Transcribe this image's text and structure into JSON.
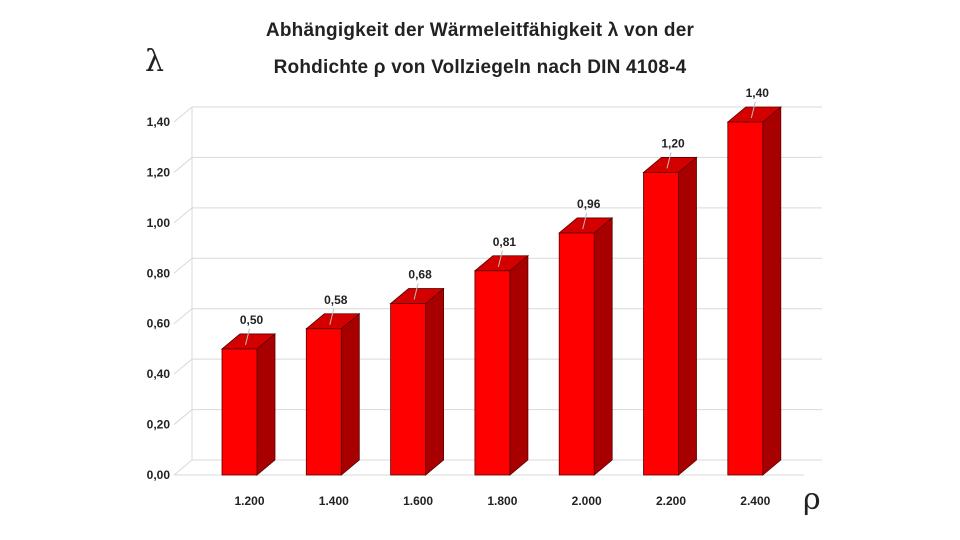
{
  "chart_data": {
    "type": "bar",
    "title_lines": [
      "Abhängigkeit der Wärmeleitfähigkeit λ von der",
      "Rohdichte ρ von Vollziegeln nach DIN 4108-4"
    ],
    "xlabel": "ρ",
    "ylabel": "λ",
    "categories": [
      "1.200",
      "1.400",
      "1.600",
      "1.800",
      "2.000",
      "2.200",
      "2.400"
    ],
    "values": [
      0.5,
      0.58,
      0.68,
      0.81,
      0.96,
      1.2,
      1.4
    ],
    "data_labels": [
      "0,50",
      "0,58",
      "0,68",
      "0,81",
      "0,96",
      "1,20",
      "1,40"
    ],
    "yticks": [
      "0,00",
      "0,20",
      "0,40",
      "0,60",
      "0,80",
      "1,00",
      "1,20",
      "1,40"
    ],
    "ylim": [
      0,
      1.4
    ],
    "grid": true,
    "legend": "none",
    "bar_color": "#ff0000",
    "bar_side_color": "#a80000",
    "bar_top_color": "#d40000"
  }
}
